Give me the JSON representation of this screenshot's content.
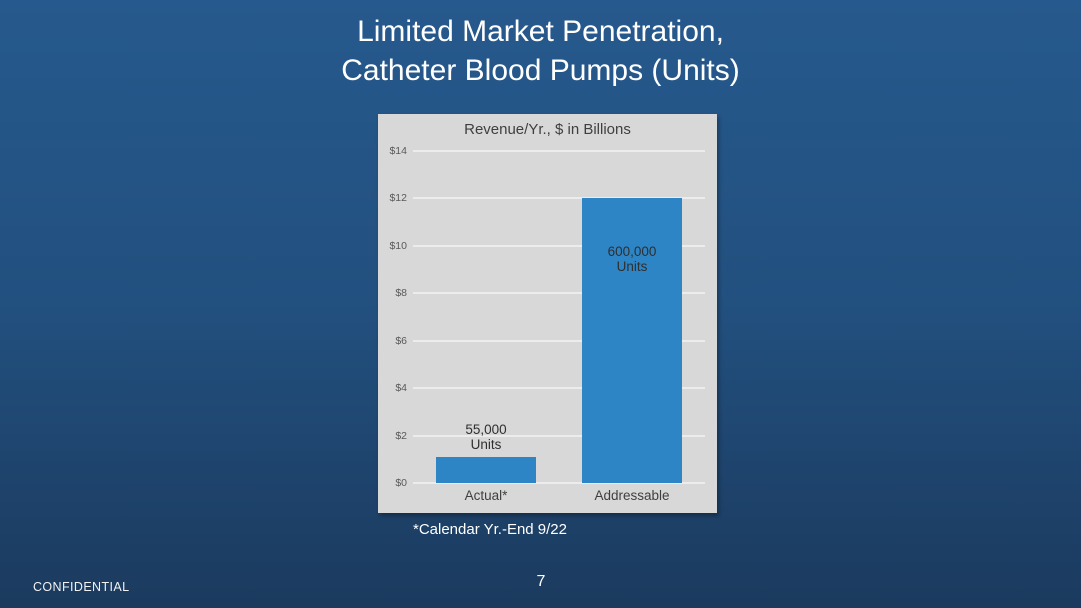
{
  "slide": {
    "title_line1": "Limited Market Penetration,",
    "title_line2": "Catheter Blood Pumps (Units)",
    "footnote": "*Calendar Yr.-End 9/22",
    "confidential_label": "CONFIDENTIAL",
    "page_number": "7"
  },
  "colors": {
    "background_top": "#26598D",
    "background_bottom": "#1B3A5E",
    "panel_background": "#D8D8D8",
    "gridline": "#ECECEC",
    "bar": "#2E85C5",
    "axis_text": "#595959",
    "label_text": "#3F3F3F",
    "title_text": "#FFFFFF"
  },
  "chart_data": {
    "type": "bar",
    "title": "Revenue/Yr., $ in Billions",
    "categories": [
      "Actual*",
      "Addressable"
    ],
    "values": [
      1.1,
      12
    ],
    "bar_labels": [
      "55,000\nUnits",
      "600,000\nUnits"
    ],
    "bar_label_positions": [
      "above",
      "inside"
    ],
    "ytick_values": [
      0,
      2,
      4,
      6,
      8,
      10,
      12,
      14
    ],
    "ytick_labels": [
      "$0",
      "$2",
      "$4",
      "$6",
      "$8",
      "$10",
      "$12",
      "$14"
    ],
    "ylim": [
      0,
      14
    ],
    "xlabel": "",
    "ylabel": "",
    "grid": true,
    "legend": false,
    "bar_color": "#2E85C5"
  }
}
